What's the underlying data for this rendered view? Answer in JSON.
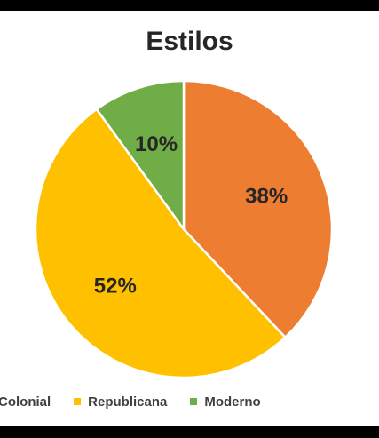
{
  "chart_data": {
    "type": "pie",
    "title": "Estilos",
    "slices": [
      {
        "name": "Colonial",
        "value": 38,
        "label": "38%",
        "color": "#ED7D31"
      },
      {
        "name": "Republicana",
        "value": 52,
        "label": "52%",
        "color": "#FFC000"
      },
      {
        "name": "Moderno",
        "value": 10,
        "label": "10%",
        "color": "#70AD47"
      }
    ],
    "legend_position": "bottom"
  }
}
